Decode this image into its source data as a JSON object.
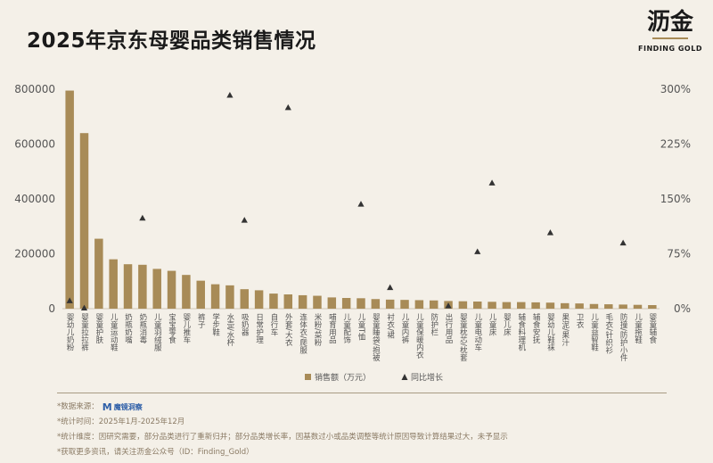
{
  "title": "2025年京东母婴品类销售情况",
  "brand": {
    "name_cn": "沥金",
    "name_en": "FINDING GOLD"
  },
  "chart_data": {
    "type": "bar",
    "categories": [
      "婴幼儿奶粉",
      "婴童拉拉裤",
      "婴童护肤",
      "儿童运动鞋",
      "奶瓶奶嘴",
      "奶瓶消毒",
      "儿童羽绒服",
      "宝宝零食",
      "婴儿推车",
      "裤子",
      "学步鞋",
      "水壶/水杯",
      "吸奶器",
      "日常护理",
      "自行车",
      "外套/大衣",
      "连体衣/爬服",
      "米粉/菜粉",
      "哺育用品",
      "儿童配饰",
      "儿童T恤",
      "婴童睡袋/抱被",
      "衬衣/裙",
      "儿童内裤",
      "儿童保暖内衣",
      "防护栏",
      "出行用品",
      "婴童枕芯/枕套",
      "儿童电动车",
      "儿童床",
      "婴儿床",
      "辅食料理机",
      "辅食安抚",
      "婴幼儿鞋袜",
      "果泥/果汁",
      "卫衣",
      "儿童益智鞋",
      "毛衣/针织衫",
      "防撞/防护小件",
      "儿童拖鞋",
      "婴童辅食"
    ],
    "series": [
      {
        "name": "销售额（万元）",
        "type": "bar",
        "axis": "left",
        "values": [
          795000,
          640000,
          255000,
          180000,
          162000,
          160000,
          145000,
          138000,
          123000,
          102000,
          89000,
          85000,
          71000,
          67000,
          55000,
          52000,
          49000,
          47000,
          41000,
          39000,
          38000,
          35000,
          33000,
          32000,
          31000,
          30000,
          28000,
          27000,
          26000,
          25000,
          24000,
          24000,
          23000,
          22000,
          20000,
          19000,
          17000,
          16000,
          15000,
          14000,
          13000
        ]
      },
      {
        "name": "同比增长",
        "type": "triangle",
        "axis": "right",
        "points": [
          [
            0,
            11
          ],
          [
            1,
            1
          ],
          [
            5,
            124
          ],
          [
            11,
            292
          ],
          [
            12,
            121
          ],
          [
            15,
            275
          ],
          [
            20,
            143
          ],
          [
            22,
            29
          ],
          [
            26,
            4
          ],
          [
            28,
            78
          ],
          [
            29,
            172
          ],
          [
            33,
            104
          ],
          [
            38,
            90
          ]
        ]
      }
    ],
    "left_axis": {
      "ylim": [
        0,
        800000
      ],
      "ticks": [
        "800000",
        "600000",
        "400000",
        "200000",
        "0"
      ]
    },
    "right_axis": {
      "ylim": [
        0,
        300
      ],
      "ticks": [
        "300%",
        "225%",
        "150%",
        "75%",
        "0%"
      ]
    },
    "legend_position": "bottom-center",
    "colors": {
      "bar": "#a88b57",
      "marker": "#333333",
      "grid": "#cfc6b6"
    }
  },
  "notes": {
    "source_label": "*数据来源：",
    "source_logo": "M",
    "source_logo_text": "魔镜洞察",
    "period": "*统计时间：2025年1月-2025年12月",
    "dimension": "*统计维度：因研究需要，部分品类进行了重新归并；部分品类增长率，因基数过小或品类调整等统计原因导致计算结果过大，未予显示",
    "more": "*获取更多资讯，请关注沥金公众号（ID：Finding_Gold）"
  }
}
